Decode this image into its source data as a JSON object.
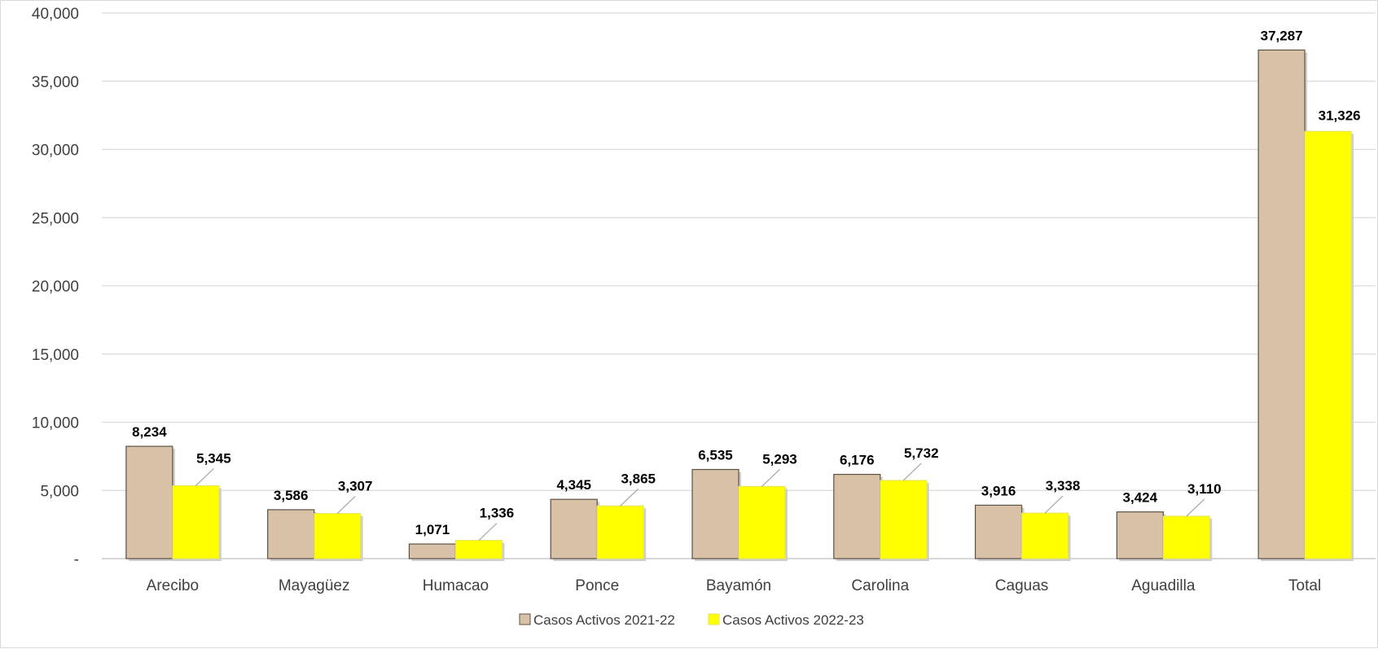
{
  "chart_data": {
    "type": "bar",
    "categories": [
      "Arecibo",
      "Mayagüez",
      "Humacao",
      "Ponce",
      "Bayamón",
      "Carolina",
      "Caguas",
      "Aguadilla",
      "Total"
    ],
    "series": [
      {
        "name": "Casos Activos 2021-22",
        "values": [
          8234,
          3586,
          1071,
          4345,
          6535,
          6176,
          3916,
          3424,
          37287
        ],
        "labels": [
          "8,234",
          "3,586",
          "1,071",
          "4,345",
          "6,535",
          "6,176",
          "3,916",
          "3,424",
          "37,287"
        ],
        "color": "#d9c1a7"
      },
      {
        "name": "Casos Activos 2022-23",
        "values": [
          5345,
          3307,
          1336,
          3865,
          5293,
          5732,
          3338,
          3110,
          31326
        ],
        "labels": [
          "5,345",
          "3,307",
          "1,336",
          "3,865",
          "5,293",
          "5,732",
          "3,338",
          "3,110",
          "31,326"
        ],
        "color": "#ffff00"
      }
    ],
    "ylim": [
      0,
      40000
    ],
    "yticks": [
      0,
      5000,
      10000,
      15000,
      20000,
      25000,
      30000,
      35000,
      40000
    ],
    "ytick_labels": [
      "-",
      "5,000",
      "10,000",
      "15,000",
      "20,000",
      "25,000",
      "30,000",
      "35,000",
      "40,000"
    ],
    "grid": true,
    "legend": "bottom",
    "title": "",
    "xlabel": "",
    "ylabel": ""
  }
}
